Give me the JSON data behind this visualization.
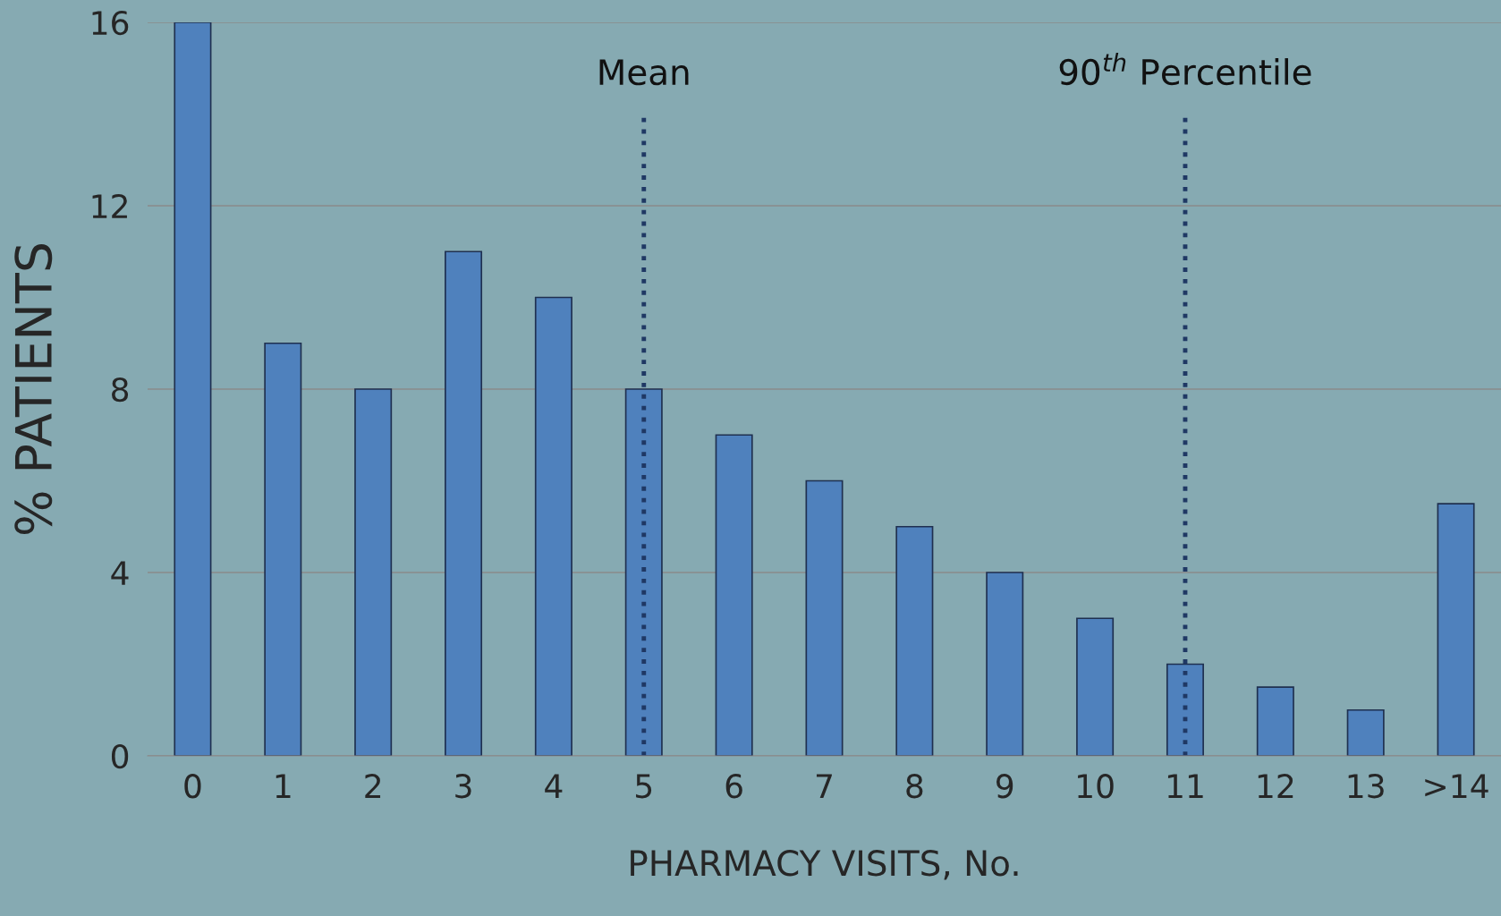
{
  "chart_data": {
    "type": "bar",
    "xlabel": "PHARMACY VISITS, No.",
    "ylabel": "% PATIENTS",
    "categories": [
      "0",
      "1",
      "2",
      "3",
      "4",
      "5",
      "6",
      "7",
      "8",
      "9",
      "10",
      "11",
      "12",
      "13",
      ">14"
    ],
    "values": [
      16,
      9,
      8,
      11,
      10,
      8,
      7,
      6,
      5,
      4,
      3,
      2,
      1.5,
      1,
      5.5
    ],
    "color": "#4f81bd",
    "ylim": [
      0,
      16
    ],
    "yticks": [
      0,
      4,
      8,
      12,
      16
    ],
    "grid": "y",
    "ref_lines": [
      {
        "axis": "x",
        "value": "5",
        "label": "Mean",
        "color": "#1f3864",
        "line_style": "dotted"
      },
      {
        "axis": "x",
        "value": "11",
        "label": "90$^{th}$ Percentile",
        "color": "#1f3864",
        "line_style": "dotted"
      }
    ]
  }
}
